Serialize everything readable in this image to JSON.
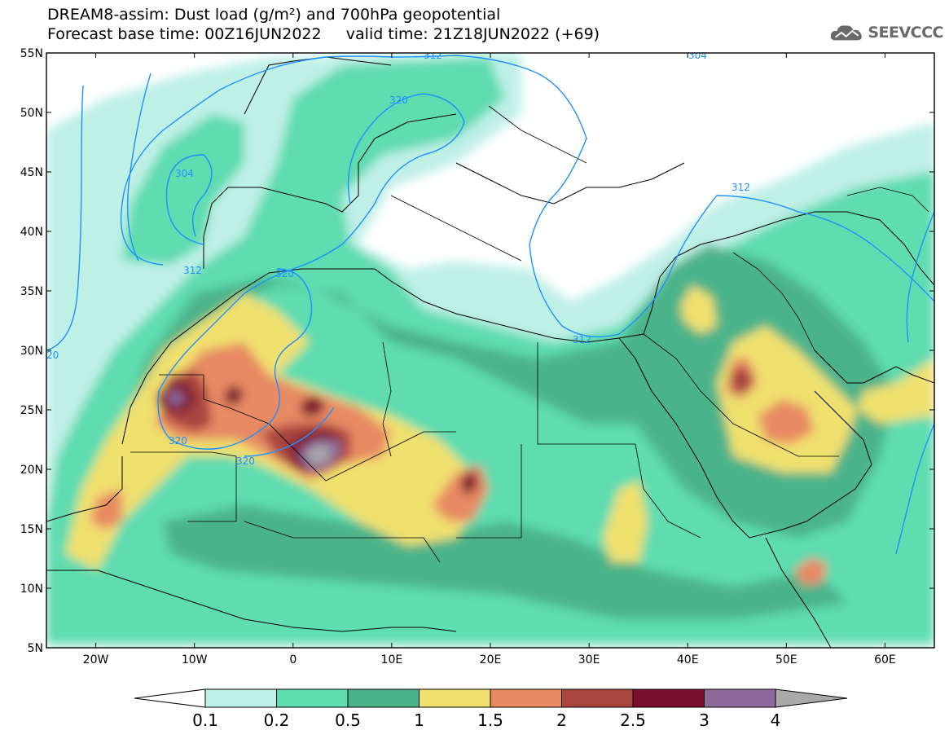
{
  "header": {
    "title_line1": "DREAM8-assim: Dust load (g/m²) and 700hPa geopotential",
    "title_line2": "Forecast base time: 00Z16JUN2022     valid time: 21Z18JUN2022 (+69)",
    "logo_text": "SEEVCCC"
  },
  "map": {
    "lat_labels": [
      "55N",
      "50N",
      "45N",
      "40N",
      "35N",
      "30N",
      "25N",
      "20N",
      "15N",
      "10N",
      "5N"
    ],
    "lon_labels": [
      "20W",
      "10W",
      "0",
      "10E",
      "20E",
      "30E",
      "40E",
      "50E",
      "60E"
    ],
    "lat_values": [
      55,
      50,
      45,
      40,
      35,
      30,
      25,
      20,
      15,
      10,
      5
    ],
    "lon_values": [
      -20,
      -10,
      0,
      10,
      20,
      30,
      40,
      50,
      60
    ],
    "lon_range": [
      -25,
      65
    ],
    "lat_range": [
      5,
      55
    ],
    "contour_labels": [
      "312",
      "304",
      "320",
      "304",
      "312",
      "320",
      "320",
      "320",
      "312",
      "312",
      "20"
    ],
    "colors": {
      "contour": "#1e90ff",
      "border": "#000000",
      "background": "#ffffff"
    }
  },
  "colorbar": {
    "labels": [
      "0.1",
      "0.2",
      "0.5",
      "1",
      "1.5",
      "2",
      "2.5",
      "3",
      "4"
    ],
    "bins": [
      {
        "color": "#bff0e6"
      },
      {
        "color": "#5fdcb0"
      },
      {
        "color": "#4bb38a"
      },
      {
        "color": "#f0e06e"
      },
      {
        "color": "#e88a64"
      },
      {
        "color": "#a8453f"
      },
      {
        "color": "#7a0e2e"
      },
      {
        "color": "#8e6a9c"
      },
      {
        "color": "#a9a9a9"
      }
    ]
  }
}
